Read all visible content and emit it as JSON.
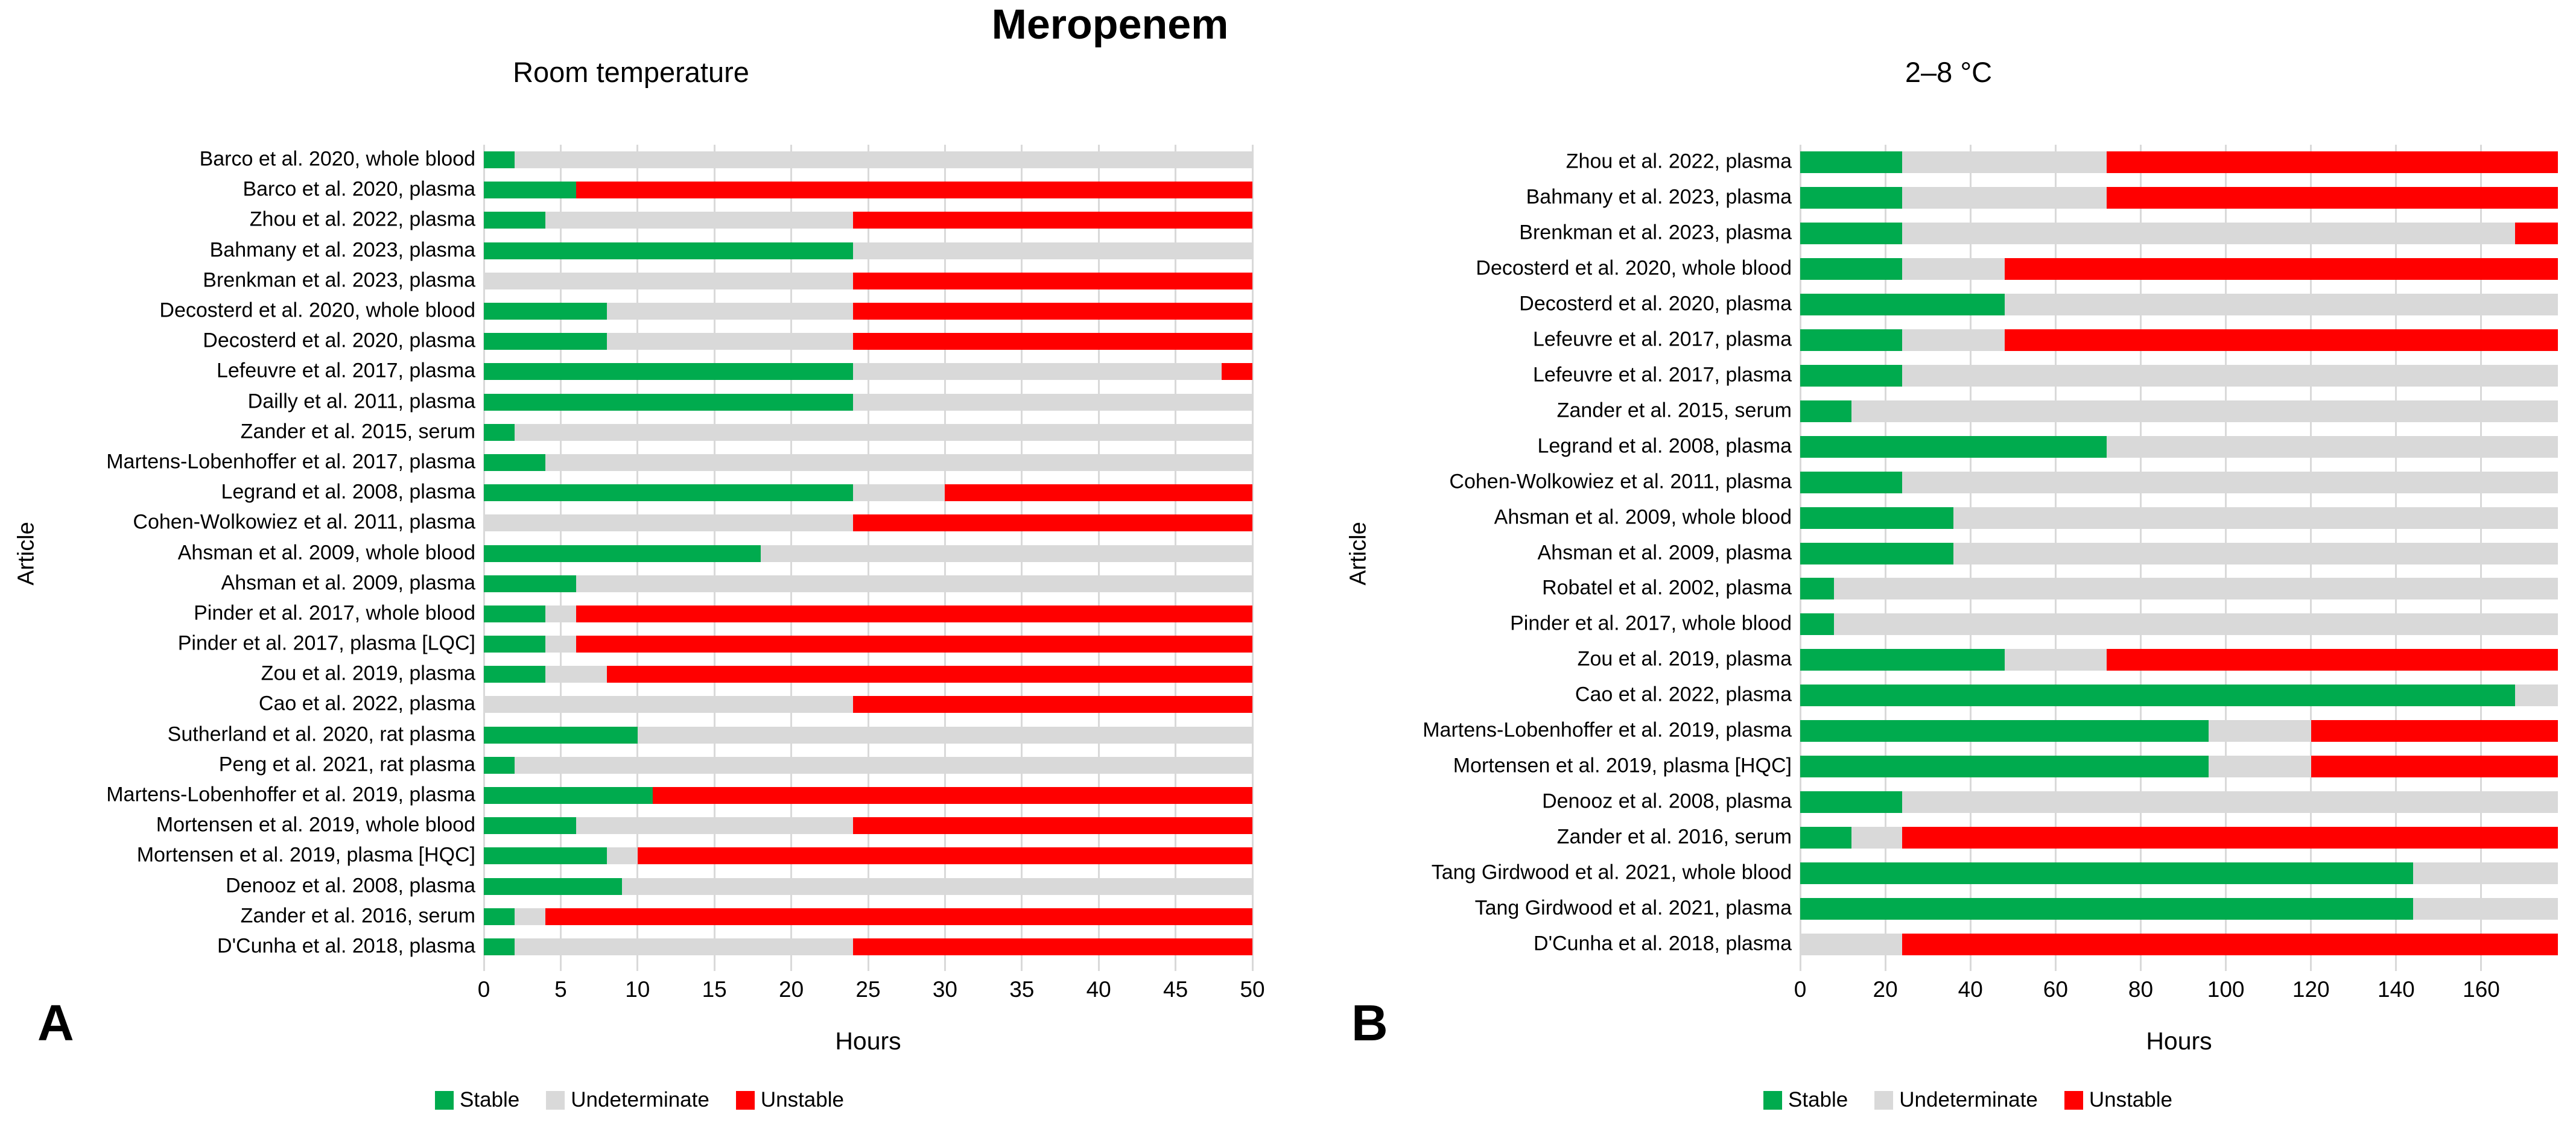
{
  "chart_title": "Meropenem",
  "colors": {
    "stable": "#00AB4E",
    "undeterminate": "#D9D9D9",
    "unstable": "#FF0000",
    "gridline": "#D9D9D9",
    "text": "#000000"
  },
  "chart_data": [
    {
      "type": "bar",
      "orientation": "horizontal-stacked",
      "panel_letter": "A",
      "title": "Room temperature",
      "xlabel": "Hours",
      "ylabel": "Article",
      "xlim": [
        0,
        50
      ],
      "xticks": [
        0,
        5,
        10,
        15,
        20,
        25,
        30,
        35,
        40,
        45,
        50
      ],
      "grid": true,
      "legend_position": "bottom",
      "categories": [
        "Barco et al. 2020, whole blood",
        "Barco et al. 2020, plasma",
        "Zhou et al. 2022, plasma",
        "Bahmany et al. 2023, plasma",
        "Brenkman et al. 2023, plasma",
        "Decosterd et al. 2020, whole blood",
        "Decosterd et al. 2020, plasma",
        "Lefeuvre et al. 2017, plasma",
        "Dailly et al. 2011, plasma",
        "Zander et al. 2015, serum",
        "Martens-Lobenhoffer et al. 2017, plasma",
        "Legrand et al. 2008, plasma",
        "Cohen-Wolkowiez et al. 2011, plasma",
        "Ahsman et al. 2009, whole blood",
        "Ahsman et al. 2009, plasma",
        "Pinder et al. 2017, whole blood",
        "Pinder et al. 2017, plasma [LQC]",
        "Zou et al. 2019, plasma",
        "Cao et al. 2022, plasma",
        "Sutherland et al. 2020, rat plasma",
        "Peng et al. 2021, rat plasma",
        "Martens-Lobenhoffer et al. 2019, plasma",
        "Mortensen et al. 2019, whole blood",
        "Mortensen et al. 2019, plasma [HQC]",
        "Denooz et al. 2008, plasma",
        "Zander et al. 2016, serum",
        "D'Cunha et al. 2018, plasma"
      ],
      "series": [
        {
          "name": "Stable",
          "values": [
            2,
            6,
            4,
            24,
            0,
            8,
            8,
            24,
            24,
            2,
            4,
            24,
            0,
            18,
            6,
            4,
            4,
            4,
            0,
            10,
            2,
            11,
            6,
            8,
            9,
            2,
            2
          ]
        },
        {
          "name": "Undeterminate",
          "values": [
            48,
            0,
            20,
            26,
            24,
            16,
            16,
            24,
            26,
            48,
            46,
            6,
            24,
            32,
            44,
            2,
            2,
            4,
            24,
            40,
            48,
            0,
            18,
            2,
            41,
            2,
            22
          ]
        },
        {
          "name": "Unstable",
          "values": [
            0,
            44,
            26,
            0,
            26,
            26,
            26,
            2,
            0,
            0,
            0,
            20,
            26,
            0,
            0,
            44,
            44,
            42,
            26,
            0,
            0,
            39,
            26,
            40,
            0,
            46,
            26
          ]
        }
      ]
    },
    {
      "type": "bar",
      "orientation": "horizontal-stacked",
      "panel_letter": "B",
      "title": "2–8 °C",
      "xlabel": "Hours",
      "ylabel": "Article",
      "xlim": [
        0,
        178
      ],
      "xticks": [
        0,
        20,
        40,
        60,
        80,
        100,
        120,
        140,
        160
      ],
      "grid": true,
      "legend_position": "bottom",
      "categories": [
        "Zhou et al. 2022, plasma",
        "Bahmany et al. 2023, plasma",
        "Brenkman et al. 2023, plasma",
        "Decosterd et al. 2020, whole blood",
        "Decosterd et al. 2020, plasma",
        "Lefeuvre et al. 2017, plasma",
        "Lefeuvre et al. 2017, plasma",
        "Zander et al. 2015, serum",
        "Legrand et al. 2008, plasma",
        "Cohen-Wolkowiez et al. 2011, plasma",
        "Ahsman et al. 2009, whole blood",
        "Ahsman et al. 2009, plasma",
        "Robatel et al. 2002, plasma",
        "Pinder et al. 2017, whole blood",
        "Zou et al. 2019, plasma",
        "Cao et al. 2022, plasma",
        "Martens-Lobenhoffer et al. 2019, plasma",
        "Mortensen et al. 2019, plasma [HQC]",
        "Denooz et al. 2008, plasma",
        "Zander et al. 2016, serum",
        "Tang Girdwood et al. 2021, whole blood",
        "Tang Girdwood et al. 2021, plasma",
        "D'Cunha et al. 2018, plasma"
      ],
      "series": [
        {
          "name": "Stable",
          "values": [
            24,
            24,
            24,
            24,
            48,
            24,
            24,
            12,
            72,
            24,
            36,
            36,
            8,
            8,
            48,
            168,
            96,
            96,
            24,
            12,
            144,
            144,
            0
          ]
        },
        {
          "name": "Undeterminate",
          "values": [
            48,
            48,
            144,
            24,
            130,
            24,
            154,
            166,
            106,
            154,
            142,
            142,
            170,
            170,
            24,
            10,
            24,
            24,
            154,
            12,
            34,
            34,
            24
          ]
        },
        {
          "name": "Unstable",
          "values": [
            106,
            106,
            10,
            130,
            0,
            130,
            0,
            0,
            0,
            0,
            0,
            0,
            0,
            0,
            106,
            0,
            58,
            58,
            0,
            154,
            0,
            0,
            154
          ]
        }
      ]
    }
  ]
}
